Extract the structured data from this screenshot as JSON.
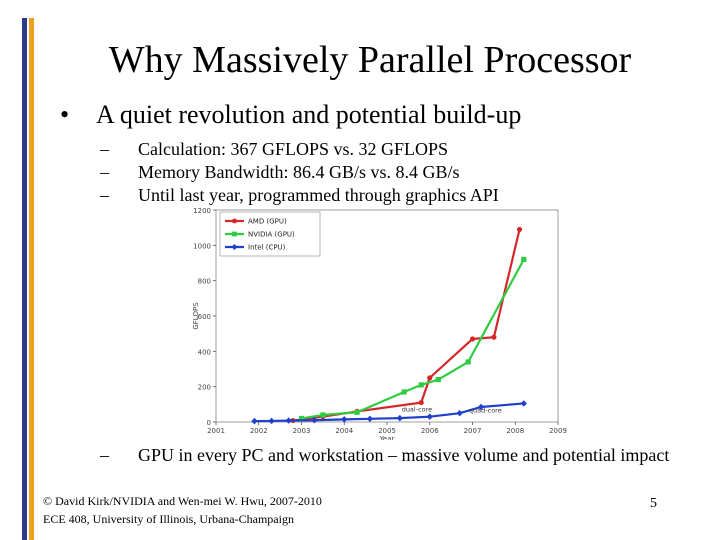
{
  "slide": {
    "title": "Why Massively Parallel Processor",
    "bullet": "A quiet revolution and potential build-up",
    "bullet_marker": "•",
    "dash": "–",
    "subs": [
      "Calculation: 367 GFLOPS vs. 32 GFLOPS",
      "Memory Bandwidth: 86.4 GB/s vs. 8.4 GB/s",
      "Until last year, programmed through graphics API"
    ],
    "last_sub": "GPU in every PC and workstation – massive volume and potential impact",
    "footer_line1": "© David Kirk/NVIDIA and Wen-mei W. Hwu, 2007-2010",
    "footer_line2": "ECE 408, University of Illinois, Urbana-Champaign",
    "page_number": "5"
  },
  "chart_data": {
    "type": "line",
    "title": "",
    "xlabel": "Year",
    "ylabel": "GFLOPS",
    "xlim": [
      2001,
      2009
    ],
    "ylim": [
      0,
      1200
    ],
    "xticks": [
      2001,
      2002,
      2003,
      2004,
      2005,
      2006,
      2007,
      2008,
      2009
    ],
    "yticks": [
      0,
      200,
      400,
      600,
      800,
      1000,
      1200
    ],
    "legend": [
      "AMD (GPU)",
      "NVIDIA (GPU)",
      "Intel (CPU)"
    ],
    "series": [
      {
        "name": "AMD (GPU)",
        "color": "#d62728",
        "x": [
          2002.8,
          2003.5,
          2004.3,
          2005.8,
          2006.0,
          2007.0,
          2007.5,
          2008.1
        ],
        "y": [
          8,
          30,
          60,
          110,
          250,
          470,
          480,
          1090
        ]
      },
      {
        "name": "NVIDIA (GPU)",
        "color": "#2ecc40",
        "x": [
          2003.0,
          2003.5,
          2004.3,
          2005.4,
          2005.8,
          2006.2,
          2006.9,
          2008.2
        ],
        "y": [
          20,
          40,
          55,
          170,
          210,
          240,
          340,
          920
        ]
      },
      {
        "name": "Intel (CPU)",
        "color": "#1f3fcc",
        "x": [
          2001.9,
          2002.3,
          2002.7,
          2003.3,
          2004.0,
          2004.6,
          2005.3,
          2006.0,
          2006.7,
          2007.2,
          2008.2
        ],
        "y": [
          5,
          6,
          8,
          10,
          15,
          18,
          22,
          30,
          50,
          85,
          105
        ]
      }
    ],
    "annotations": [
      {
        "text": "dual-core",
        "x": 2005.7,
        "y": 60
      },
      {
        "text": "quad-core",
        "x": 2007.3,
        "y": 55
      }
    ]
  }
}
